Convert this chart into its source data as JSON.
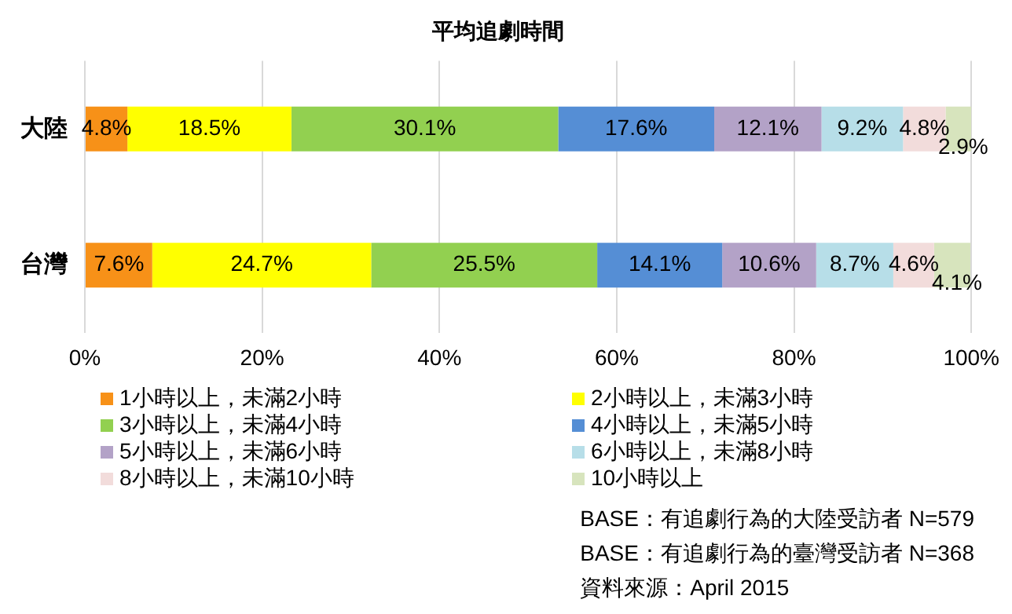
{
  "chart_data": {
    "type": "bar",
    "orientation": "horizontal",
    "stacked": true,
    "title": "平均追劇時間",
    "categories": [
      "大陸",
      "台灣"
    ],
    "series": [
      {
        "name": "1小時以上，未滿2小時",
        "color": "#f79118",
        "values": [
          4.8,
          7.6
        ],
        "value_labels": [
          "4.8%",
          "7.6%"
        ]
      },
      {
        "name": "2小時以上，未滿3小時",
        "color": "#ffff00",
        "values": [
          18.5,
          24.7
        ],
        "value_labels": [
          "18.5%",
          "24.7%"
        ]
      },
      {
        "name": "3小時以上，未滿4小時",
        "color": "#92d050",
        "values": [
          30.1,
          25.5
        ],
        "value_labels": [
          "30.1%",
          "25.5%"
        ]
      },
      {
        "name": "4小時以上，未滿5小時",
        "color": "#558ed5",
        "values": [
          17.6,
          14.1
        ],
        "value_labels": [
          "17.6%",
          "14.1%"
        ]
      },
      {
        "name": "5小時以上，未滿6小時",
        "color": "#b3a2c7",
        "values": [
          12.1,
          10.6
        ],
        "value_labels": [
          "12.1%",
          "10.6%"
        ]
      },
      {
        "name": "6小時以上，未滿8小時",
        "color": "#b7dee8",
        "values": [
          9.2,
          8.7
        ],
        "value_labels": [
          "9.2%",
          "8.7%"
        ]
      },
      {
        "name": "8小時以上，未滿10小時",
        "color": "#f2dcdb",
        "values": [
          4.8,
          4.6
        ],
        "value_labels": [
          "4.8%",
          "4.6%"
        ]
      },
      {
        "name": "10小時以上",
        "color": "#d7e4bd",
        "values": [
          2.9,
          4.1
        ],
        "value_labels": [
          "2.9%",
          "4.1%"
        ]
      }
    ],
    "xlim": [
      0,
      100
    ],
    "xticks": [
      {
        "value": 0,
        "label": "0%"
      },
      {
        "value": 20,
        "label": "20%"
      },
      {
        "value": 40,
        "label": "40%"
      },
      {
        "value": 60,
        "label": "60%"
      },
      {
        "value": 80,
        "label": "80%"
      },
      {
        "value": 100,
        "label": "100%"
      }
    ],
    "grid": "x",
    "legend": "bottom",
    "annotations": [
      "BASE：有追劇行為的大陸受訪者 N=579",
      "BASE：有追劇行為的臺灣受訪者 N=368",
      "資料來源：April 2015"
    ]
  }
}
